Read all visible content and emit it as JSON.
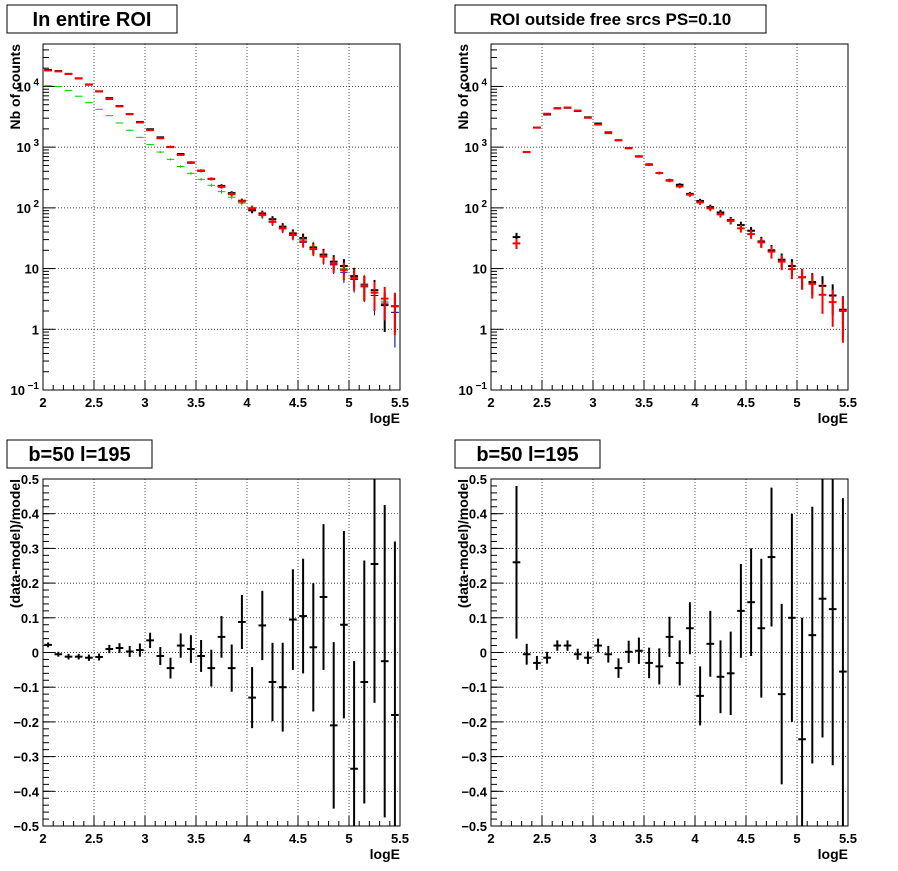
{
  "chart_data": [
    {
      "type": "scatter",
      "title": "In entire ROI",
      "xlabel": "logE",
      "ylabel": "Nb of counts",
      "xlim": [
        2,
        5.5
      ],
      "ylim": [
        0.1,
        50000
      ],
      "yscale": "log",
      "grid": true,
      "x_ticks": [
        "2",
        "2.5",
        "3",
        "3.5",
        "4",
        "4.5",
        "5",
        "5.5"
      ],
      "y_ticks": [
        {
          "value": 0.1,
          "label": "10",
          "exp": "−1"
        },
        {
          "value": 1,
          "label": "1"
        },
        {
          "value": 10,
          "label": "10"
        },
        {
          "value": 100,
          "label": "10",
          "exp": "2"
        },
        {
          "value": 1000,
          "label": "10",
          "exp": "3"
        },
        {
          "value": 10000,
          "label": "10",
          "exp": "4"
        }
      ],
      "series": [
        {
          "color": "#00cc00",
          "x": [
            2.05,
            2.15,
            2.25,
            2.35,
            2.45,
            2.55,
            2.65,
            2.75,
            2.85,
            2.95,
            3.05,
            3.15,
            3.25,
            3.35,
            3.45,
            3.55,
            3.65,
            3.75,
            3.85,
            3.95,
            4.05,
            4.15,
            4.25,
            4.35,
            4.45,
            4.55,
            4.65,
            4.75,
            4.85,
            4.95,
            5.05,
            5.15,
            5.25,
            5.35,
            5.45
          ],
          "y": [
            10300,
            10000,
            8600,
            6900,
            5400,
            4200,
            3300,
            2500,
            1900,
            1450,
            1100,
            830,
            630,
            480,
            370,
            295,
            235,
            185,
            150,
            120,
            95,
            75,
            60,
            48,
            38,
            30,
            23,
            17,
            13,
            10,
            7.6,
            5.6,
            4,
            2.9,
            1.9
          ],
          "yerr": [
            100,
            100,
            90,
            80,
            70,
            60,
            55,
            50,
            45,
            38,
            33,
            29,
            25,
            22,
            19,
            17,
            15,
            14,
            12,
            11,
            10,
            9,
            8,
            7,
            6,
            5.5,
            4.8,
            4.1,
            3.6,
            3.2,
            2.8,
            2.4,
            2,
            1.7,
            1.4
          ]
        },
        {
          "color": "#0000cc",
          "x": [
            2.05,
            2.15,
            2.25,
            2.35,
            2.45,
            2.55,
            2.65,
            2.75,
            2.85,
            2.95,
            3.05,
            3.15,
            3.25,
            3.35,
            3.45,
            3.55,
            3.65,
            3.75,
            3.85,
            3.95,
            4.05,
            4.15,
            4.25,
            4.35,
            4.45,
            4.55,
            4.65,
            4.75,
            4.85,
            4.95,
            5.05,
            5.15,
            5.25,
            5.35,
            5.45
          ],
          "y": [
            18200,
            17800,
            16300,
            13700,
            10800,
            8400,
            6300,
            4700,
            3500,
            2600,
            1900,
            1400,
            1020,
            740,
            550,
            405,
            300,
            225,
            170,
            130,
            99,
            76,
            58,
            45,
            35,
            27,
            20.5,
            15.5,
            11.5,
            8.7,
            6.6,
            5,
            3.6,
            2.7,
            1.9
          ],
          "yerr": [
            135,
            133,
            128,
            117,
            104,
            92,
            79,
            69,
            59,
            51,
            44,
            37,
            32,
            27,
            23,
            20,
            17,
            15,
            13,
            11,
            10,
            8.7,
            7.6,
            6.7,
            5.9,
            5.2,
            4.5,
            3.9,
            3.4,
            2.9,
            2.6,
            2.2,
            1.9,
            1.6,
            1.4
          ]
        },
        {
          "color": "#000000",
          "x": [
            2.05,
            2.15,
            2.25,
            2.35,
            2.45,
            2.55,
            2.65,
            2.75,
            2.85,
            2.95,
            3.05,
            3.15,
            3.25,
            3.35,
            3.45,
            3.55,
            3.65,
            3.75,
            3.85,
            3.95,
            4.05,
            4.15,
            4.25,
            4.35,
            4.45,
            4.55,
            4.65,
            4.75,
            4.85,
            4.95,
            5.05,
            5.15,
            5.25,
            5.35,
            5.45
          ],
          "y": [
            18700,
            17900,
            16100,
            13600,
            10700,
            8300,
            6400,
            4750,
            3500,
            2600,
            1970,
            1450,
            1010,
            770,
            560,
            410,
            300,
            230,
            175,
            131,
            91,
            81,
            65,
            49,
            38,
            32,
            22,
            17,
            13,
            11,
            7.5,
            5.3,
            4.4,
            2.5,
            2.4
          ],
          "yerr": [
            137,
            134,
            127,
            117,
            103,
            91,
            80,
            69,
            59,
            51,
            44,
            38,
            32,
            28,
            24,
            20,
            17,
            15,
            13,
            11,
            9.5,
            9,
            8,
            7,
            6.2,
            5.7,
            4.7,
            4.1,
            3.6,
            3.3,
            2.7,
            2.3,
            2.1,
            1.6,
            1.5
          ]
        },
        {
          "color": "#ff0000",
          "x": [
            2.05,
            2.15,
            2.25,
            2.35,
            2.45,
            2.55,
            2.65,
            2.75,
            2.85,
            2.95,
            3.05,
            3.15,
            3.25,
            3.35,
            3.45,
            3.55,
            3.65,
            3.75,
            3.85,
            3.95,
            4.05,
            4.15,
            4.25,
            4.35,
            4.45,
            4.55,
            4.65,
            4.75,
            4.85,
            4.95,
            5.05,
            5.15,
            5.25,
            5.35,
            5.45
          ],
          "y": [
            18300,
            17700,
            16000,
            13500,
            10800,
            8300,
            6200,
            4700,
            3500,
            2550,
            1900,
            1400,
            1000,
            745,
            550,
            405,
            300,
            222,
            168,
            128,
            99,
            77,
            59,
            46,
            36,
            28,
            21,
            16,
            12,
            9.5,
            7,
            5.2,
            4,
            3.2,
            2.4
          ],
          "yerr": [
            135,
            133,
            126,
            116,
            104,
            91,
            79,
            69,
            59,
            50,
            44,
            37,
            32,
            27,
            23,
            20,
            17,
            15,
            13,
            11,
            10,
            8.8,
            7.7,
            6.8,
            6,
            5.3,
            4.6,
            4,
            3.5,
            3.1,
            2.7,
            2.3,
            2,
            1.8,
            1.6
          ]
        }
      ]
    },
    {
      "type": "scatter",
      "title": "ROI outside free srcs PS=0.10",
      "xlabel": "logE",
      "ylabel": "Nb of counts",
      "xlim": [
        2,
        5.5
      ],
      "ylim": [
        0.1,
        50000
      ],
      "yscale": "log",
      "grid": true,
      "x_ticks": [
        "2",
        "2.5",
        "3",
        "3.5",
        "4",
        "4.5",
        "5",
        "5.5"
      ],
      "y_ticks": [
        {
          "value": 0.1,
          "label": "10",
          "exp": "−1"
        },
        {
          "value": 1,
          "label": "1"
        },
        {
          "value": 10,
          "label": "10"
        },
        {
          "value": 100,
          "label": "10",
          "exp": "2"
        },
        {
          "value": 1000,
          "label": "10",
          "exp": "3"
        },
        {
          "value": 10000,
          "label": "10",
          "exp": "4"
        }
      ],
      "series": [
        {
          "color": "#000000",
          "x": [
            2.25,
            2.35,
            2.45,
            2.55,
            2.65,
            2.75,
            2.85,
            2.95,
            3.05,
            3.15,
            3.25,
            3.35,
            3.45,
            3.55,
            3.65,
            3.75,
            3.85,
            3.95,
            4.05,
            4.15,
            4.25,
            4.35,
            4.45,
            4.55,
            4.65,
            4.75,
            4.85,
            4.95,
            5.05,
            5.15,
            5.25,
            5.35,
            5.45
          ],
          "y": [
            33,
            830,
            2100,
            3450,
            4350,
            4450,
            3950,
            3100,
            2450,
            1750,
            1300,
            960,
            700,
            520,
            375,
            285,
            240,
            170,
            130,
            103,
            84,
            63,
            52,
            42,
            28,
            20,
            14,
            11,
            7.2,
            6,
            5.2,
            3.6,
            2.1
          ],
          "yerr": [
            5.7,
            29,
            46,
            59,
            66,
            67,
            63,
            56,
            49,
            42,
            36,
            31,
            26,
            23,
            19,
            17,
            15,
            13,
            11,
            10,
            9.2,
            7.9,
            7.2,
            6.5,
            5.3,
            4.5,
            3.7,
            3.3,
            2.7,
            2.4,
            2.3,
            1.9,
            1.4
          ]
        },
        {
          "color": "#ff0000",
          "x": [
            2.25,
            2.35,
            2.45,
            2.55,
            2.65,
            2.75,
            2.85,
            2.95,
            3.05,
            3.15,
            3.25,
            3.35,
            3.45,
            3.55,
            3.65,
            3.75,
            3.85,
            3.95,
            4.05,
            4.15,
            4.25,
            4.35,
            4.45,
            4.55,
            4.65,
            4.75,
            4.85,
            4.95,
            5.05,
            5.15,
            5.25,
            5.35,
            5.45
          ],
          "y": [
            26,
            830,
            2100,
            3550,
            4400,
            4500,
            4000,
            3050,
            2350,
            1700,
            1300,
            970,
            710,
            510,
            375,
            280,
            225,
            165,
            123,
            98,
            78,
            61,
            46,
            37,
            27,
            19,
            13,
            9.8,
            7.2,
            5.6,
            3.7,
            2.8,
            2
          ],
          "yerr": [
            5,
            29,
            46,
            60,
            66,
            67,
            63,
            55,
            48,
            41,
            36,
            31,
            27,
            23,
            19,
            17,
            15,
            13,
            11,
            9.9,
            8.8,
            7.8,
            6.8,
            6.1,
            5.2,
            4.4,
            3.6,
            3.1,
            2.7,
            2.4,
            1.9,
            1.7,
            1.4
          ]
        }
      ]
    },
    {
      "type": "scatter",
      "title": "b=50 l=195",
      "xlabel": "logE",
      "ylabel": "(data-model)/model",
      "xlim": [
        2,
        5.5
      ],
      "ylim": [
        -0.5,
        0.5
      ],
      "grid": true,
      "x_ticks": [
        "2",
        "2.5",
        "3",
        "3.5",
        "4",
        "4.5",
        "5",
        "5.5"
      ],
      "y_ticks": [
        {
          "value": -0.5,
          "label": "−0.5"
        },
        {
          "value": -0.4,
          "label": "−0.4"
        },
        {
          "value": -0.3,
          "label": "−0.3"
        },
        {
          "value": -0.2,
          "label": "−0.2"
        },
        {
          "value": -0.1,
          "label": "−0.1"
        },
        {
          "value": 0,
          "label": "0"
        },
        {
          "value": 0.1,
          "label": "0.1"
        },
        {
          "value": 0.2,
          "label": "0.2"
        },
        {
          "value": 0.3,
          "label": "0.3"
        },
        {
          "value": 0.4,
          "label": "0.4"
        },
        {
          "value": 0.5,
          "label": "0.5"
        }
      ],
      "series": [
        {
          "color": "#000000",
          "x": [
            2.05,
            2.15,
            2.25,
            2.35,
            2.45,
            2.55,
            2.65,
            2.75,
            2.85,
            2.95,
            3.05,
            3.15,
            3.25,
            3.35,
            3.45,
            3.55,
            3.65,
            3.75,
            3.85,
            3.95,
            4.05,
            4.15,
            4.25,
            4.35,
            4.45,
            4.55,
            4.65,
            4.75,
            4.85,
            4.95,
            5.05,
            5.15,
            5.25,
            5.35,
            5.45
          ],
          "y": [
            0.022,
            -0.005,
            -0.012,
            -0.012,
            -0.015,
            -0.013,
            0.01,
            0.013,
            0.003,
            0.007,
            0.035,
            -0.01,
            -0.045,
            0.02,
            0.01,
            -0.01,
            -0.045,
            0.045,
            -0.045,
            0.088,
            -0.13,
            0.078,
            -0.085,
            -0.1,
            0.095,
            0.105,
            0.015,
            0.16,
            -0.21,
            0.08,
            -0.335,
            -0.085,
            0.255,
            -0.025,
            -0.18
          ],
          "yerr": [
            0.007,
            0.007,
            0.008,
            0.008,
            0.009,
            0.01,
            0.012,
            0.014,
            0.016,
            0.019,
            0.022,
            0.026,
            0.03,
            0.035,
            0.04,
            0.046,
            0.053,
            0.06,
            0.068,
            0.078,
            0.088,
            0.1,
            0.113,
            0.128,
            0.145,
            0.165,
            0.185,
            0.21,
            0.24,
            0.27,
            0.31,
            0.35,
            0.4,
            0.45,
            0.5
          ]
        }
      ]
    },
    {
      "type": "scatter",
      "title": "b=50 l=195",
      "xlabel": "logE",
      "ylabel": "(data-model)/model",
      "xlim": [
        2,
        5.5
      ],
      "ylim": [
        -0.5,
        0.5
      ],
      "grid": true,
      "x_ticks": [
        "2",
        "2.5",
        "3",
        "3.5",
        "4",
        "4.5",
        "5",
        "5.5"
      ],
      "y_ticks": [
        {
          "value": -0.5,
          "label": "−0.5"
        },
        {
          "value": -0.4,
          "label": "−0.4"
        },
        {
          "value": -0.3,
          "label": "−0.3"
        },
        {
          "value": -0.2,
          "label": "−0.2"
        },
        {
          "value": -0.1,
          "label": "−0.1"
        },
        {
          "value": 0,
          "label": "0"
        },
        {
          "value": 0.1,
          "label": "0.1"
        },
        {
          "value": 0.2,
          "label": "0.2"
        },
        {
          "value": 0.3,
          "label": "0.3"
        },
        {
          "value": 0.4,
          "label": "0.4"
        },
        {
          "value": 0.5,
          "label": "0.5"
        }
      ],
      "series": [
        {
          "color": "#000000",
          "x": [
            2.25,
            2.35,
            2.45,
            2.55,
            2.65,
            2.75,
            2.85,
            2.95,
            3.05,
            3.15,
            3.25,
            3.35,
            3.45,
            3.55,
            3.65,
            3.75,
            3.85,
            3.95,
            4.05,
            4.15,
            4.25,
            4.35,
            4.45,
            4.55,
            4.65,
            4.75,
            4.85,
            4.95,
            5.05,
            5.15,
            5.25,
            5.35,
            5.45
          ],
          "y": [
            0.26,
            -0.005,
            -0.03,
            -0.015,
            0.02,
            0.02,
            -0.005,
            -0.015,
            0.02,
            -0.005,
            -0.045,
            0.002,
            0.005,
            -0.03,
            -0.04,
            0.045,
            -0.03,
            0.07,
            -0.125,
            0.025,
            -0.07,
            -0.06,
            0.12,
            0.145,
            0.07,
            0.275,
            -0.12,
            0.1,
            -0.25,
            0.05,
            0.155,
            0.125,
            -0.055
          ],
          "yerr": [
            0.22,
            0.03,
            0.02,
            0.017,
            0.015,
            0.015,
            0.016,
            0.018,
            0.02,
            0.024,
            0.028,
            0.032,
            0.038,
            0.044,
            0.052,
            0.058,
            0.065,
            0.075,
            0.085,
            0.095,
            0.105,
            0.12,
            0.135,
            0.155,
            0.2,
            0.2,
            0.26,
            0.3,
            0.35,
            0.37,
            0.4,
            0.45,
            0.5
          ]
        }
      ]
    }
  ]
}
